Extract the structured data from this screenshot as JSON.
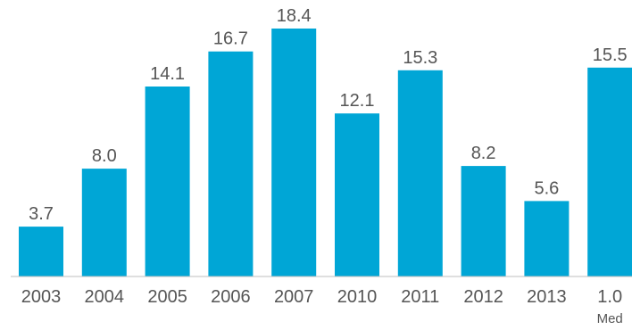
{
  "chart_data": {
    "type": "bar",
    "categories": [
      "2003",
      "2004",
      "2005",
      "2006",
      "2007",
      "2010",
      "2011",
      "2012",
      "2013",
      "1.0"
    ],
    "category_sublabels": [
      "",
      "",
      "",
      "",
      "",
      "",
      "",
      "",
      "",
      "Med"
    ],
    "values": [
      3.7,
      8.0,
      14.1,
      16.7,
      18.4,
      12.1,
      15.3,
      8.2,
      5.6,
      15.5
    ],
    "value_labels": [
      "3.7",
      "8.0",
      "14.1",
      "16.7",
      "18.4",
      "12.1",
      "15.3",
      "8.2",
      "5.6",
      "15.5"
    ],
    "title": "",
    "xlabel": "",
    "ylabel": "",
    "ylim": [
      0,
      18.4
    ],
    "grid": false,
    "legend": "none",
    "bar_color": "#00A6D6",
    "axis_color": "#BFBFBF",
    "text_color": "#555555"
  }
}
